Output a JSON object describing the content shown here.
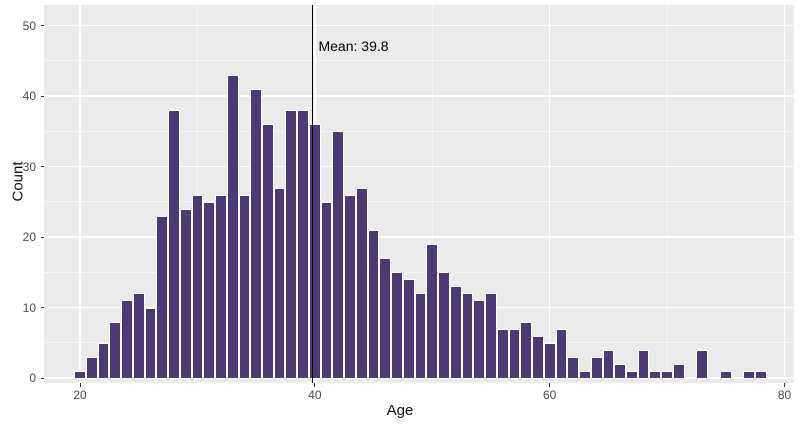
{
  "chart_data": {
    "type": "bar",
    "title": "",
    "xlabel": "Age",
    "ylabel": "Count",
    "x": [
      20,
      21,
      22,
      23,
      24,
      25,
      26,
      27,
      28,
      29,
      30,
      31,
      32,
      33,
      34,
      35,
      36,
      37,
      38,
      39,
      40,
      41,
      42,
      43,
      44,
      45,
      46,
      47,
      48,
      49,
      50,
      51,
      52,
      53,
      54,
      55,
      56,
      57,
      58,
      59,
      60,
      61,
      62,
      63,
      64,
      65,
      66,
      67,
      68,
      69,
      70,
      71,
      72,
      73,
      74,
      75,
      76,
      77,
      78
    ],
    "values": [
      1,
      3,
      5,
      8,
      11,
      12,
      10,
      23,
      38,
      24,
      26,
      25,
      26,
      43,
      26,
      41,
      36,
      27,
      38,
      38,
      36,
      25,
      35,
      26,
      27,
      21,
      17,
      15,
      14,
      12,
      19,
      15,
      13,
      12,
      11,
      12,
      7,
      7,
      8,
      6,
      5,
      7,
      3,
      1,
      3,
      4,
      2,
      1,
      4,
      1,
      1,
      2,
      0,
      4,
      0,
      1,
      0,
      1,
      1
    ],
    "bin_width": 1,
    "xlim": [
      17.2,
      80.8
    ],
    "ylim": [
      0,
      52.9
    ],
    "x_ticks": [
      20,
      40,
      60,
      80
    ],
    "y_ticks": [
      0,
      10,
      20,
      30,
      40,
      50
    ],
    "x_minor_ticks": [
      30,
      50,
      70
    ],
    "y_minor_ticks": [
      5,
      15,
      25,
      35,
      45
    ],
    "grid": "on",
    "legend_position": "none",
    "annotation": {
      "label": "Mean: 39.8",
      "value": 39.8
    },
    "colors": {
      "bar_fill": "#4b3a76",
      "bar_border": "#ffffff",
      "panel_background": "#ebebeb",
      "grid_major": "#ffffff",
      "grid_minor": "rgba(255,255,255,0.55)",
      "mean_line": "#000000",
      "tick_text": "#4d4d4d",
      "axis_title_text": "#111111"
    }
  }
}
